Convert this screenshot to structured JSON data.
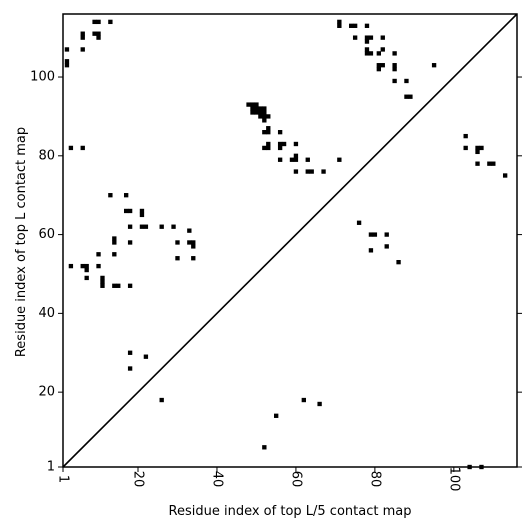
{
  "chart_data": {
    "type": "scatter",
    "title": "",
    "xlabel": "Residue index of top L/5 contact map",
    "ylabel": "Residue index of top L contact map",
    "xlim": [
      1,
      116
    ],
    "ylim": [
      1,
      116
    ],
    "xticks": [
      1,
      20,
      40,
      60,
      80,
      100
    ],
    "yticks": [
      1,
      20,
      40,
      60,
      80,
      100
    ],
    "xtick_labels": [
      "1",
      "20",
      "40",
      "60",
      "80",
      "100"
    ],
    "ytick_labels": [
      "1",
      "20",
      "40",
      "60",
      "80",
      "100"
    ],
    "diagonal": true,
    "marker_color": "#000000",
    "series": [
      {
        "points": [
          [
            2,
            107
          ],
          [
            2,
            104
          ],
          [
            2,
            103
          ],
          [
            6,
            111
          ],
          [
            6,
            110
          ],
          [
            6,
            107
          ],
          [
            9,
            114
          ],
          [
            10,
            114
          ],
          [
            9,
            111
          ],
          [
            10,
            111
          ],
          [
            10,
            110
          ],
          [
            13,
            114
          ],
          [
            3,
            82
          ],
          [
            6,
            82
          ],
          [
            3,
            52
          ],
          [
            6,
            52
          ],
          [
            7,
            52
          ],
          [
            7,
            51
          ],
          [
            7,
            49
          ],
          [
            10,
            55
          ],
          [
            10,
            52
          ],
          [
            11,
            49
          ],
          [
            11,
            48
          ],
          [
            11,
            47
          ],
          [
            13,
            70
          ],
          [
            14,
            59
          ],
          [
            14,
            58
          ],
          [
            14,
            55
          ],
          [
            14,
            47
          ],
          [
            15,
            47
          ],
          [
            17,
            70
          ],
          [
            17,
            66
          ],
          [
            18,
            66
          ],
          [
            18,
            62
          ],
          [
            18,
            58
          ],
          [
            18,
            47
          ],
          [
            21,
            66
          ],
          [
            21,
            65
          ],
          [
            21,
            62
          ],
          [
            22,
            62
          ],
          [
            26,
            62
          ],
          [
            29,
            62
          ],
          [
            30,
            58
          ],
          [
            30,
            54
          ],
          [
            33,
            61
          ],
          [
            33,
            58
          ],
          [
            34,
            58
          ],
          [
            34,
            57
          ],
          [
            34,
            54
          ],
          [
            48,
            93
          ],
          [
            49,
            93
          ],
          [
            50,
            93
          ],
          [
            49,
            92
          ],
          [
            50,
            92
          ],
          [
            51,
            92
          ],
          [
            52,
            92
          ],
          [
            49,
            91
          ],
          [
            50,
            91
          ],
          [
            51,
            91
          ],
          [
            52,
            91
          ],
          [
            51,
            90
          ],
          [
            52,
            90
          ],
          [
            53,
            90
          ],
          [
            52,
            89
          ],
          [
            52,
            86
          ],
          [
            53,
            86
          ],
          [
            53,
            87
          ],
          [
            53,
            83
          ],
          [
            52,
            82
          ],
          [
            53,
            82
          ],
          [
            56,
            86
          ],
          [
            56,
            83
          ],
          [
            57,
            83
          ],
          [
            56,
            82
          ],
          [
            56,
            79
          ],
          [
            59,
            79
          ],
          [
            60,
            79
          ],
          [
            60,
            80
          ],
          [
            60,
            83
          ],
          [
            63,
            79
          ],
          [
            60,
            76
          ],
          [
            63,
            76
          ],
          [
            64,
            76
          ],
          [
            67,
            76
          ],
          [
            71,
            79
          ],
          [
            71,
            114
          ],
          [
            71,
            113
          ],
          [
            74,
            113
          ],
          [
            75,
            113
          ],
          [
            75,
            110
          ],
          [
            78,
            113
          ],
          [
            78,
            110
          ],
          [
            78,
            109
          ],
          [
            79,
            110
          ],
          [
            78,
            107
          ],
          [
            78,
            106
          ],
          [
            79,
            106
          ],
          [
            81,
            106
          ],
          [
            82,
            107
          ],
          [
            82,
            110
          ],
          [
            81,
            103
          ],
          [
            82,
            103
          ],
          [
            81,
            102
          ],
          [
            85,
            106
          ],
          [
            85,
            103
          ],
          [
            85,
            102
          ],
          [
            85,
            99
          ],
          [
            88,
            99
          ],
          [
            88,
            95
          ],
          [
            89,
            95
          ],
          [
            95,
            103
          ],
          [
            76,
            63
          ],
          [
            79,
            60
          ],
          [
            80,
            60
          ],
          [
            79,
            56
          ],
          [
            83,
            60
          ],
          [
            83,
            57
          ],
          [
            86,
            53
          ],
          [
            103,
            85
          ],
          [
            103,
            82
          ],
          [
            106,
            82
          ],
          [
            107,
            82
          ],
          [
            106,
            81
          ],
          [
            106,
            78
          ],
          [
            109,
            78
          ],
          [
            110,
            78
          ],
          [
            113,
            75
          ],
          [
            18,
            30
          ],
          [
            18,
            26
          ],
          [
            22,
            29
          ],
          [
            26,
            18
          ],
          [
            52,
            6
          ],
          [
            55,
            14
          ],
          [
            62,
            18
          ],
          [
            66,
            17
          ],
          [
            104,
            1
          ],
          [
            107,
            1
          ]
        ]
      }
    ]
  }
}
